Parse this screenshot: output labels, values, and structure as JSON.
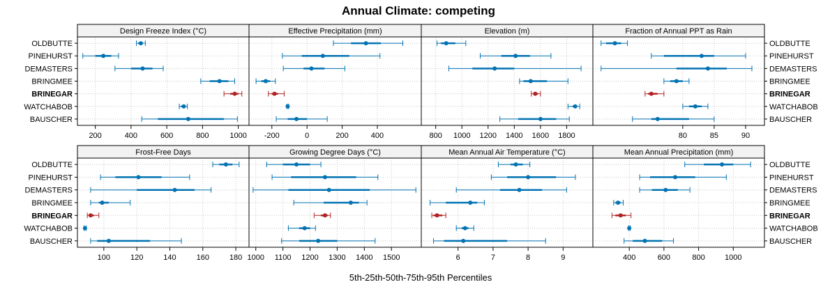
{
  "chart_data": {
    "type": "dot-whisker-panels",
    "title": "Annual Climate: competing",
    "xlabel": "5th-25th-50th-75th-95th Percentiles",
    "sites": [
      "OLDBUTTE",
      "PINEHURST",
      "DEMASTERS",
      "BRINGMEE",
      "BRINEGAR",
      "WATCHABOB",
      "BAUSCHER"
    ],
    "highlight_site": "BRINEGAR",
    "colors": {
      "normal": "#0072B2",
      "highlight": "#B22222",
      "strip": "#f2f2f2",
      "grid": "#c8c8c8"
    },
    "panels": [
      {
        "name": "Design Freeze Index (°C)",
        "xlim": [
          100,
          1060
        ],
        "ticks": [
          200,
          400,
          600,
          800,
          1000
        ],
        "data": [
          [
            430,
            440,
            455,
            465,
            480
          ],
          [
            130,
            200,
            245,
            290,
            330
          ],
          [
            310,
            400,
            465,
            520,
            580
          ],
          [
            790,
            840,
            895,
            945,
            980
          ],
          [
            920,
            955,
            980,
            1000,
            1020
          ],
          [
            670,
            680,
            695,
            705,
            715
          ],
          [
            460,
            550,
            720,
            920,
            995
          ]
        ]
      },
      {
        "name": "Effective Precipitation (mm)",
        "xlim": [
          -330,
          650
        ],
        "ticks": [
          -200,
          0,
          200,
          400
        ],
        "data": [
          [
            150,
            250,
            335,
            420,
            545
          ],
          [
            -140,
            -30,
            90,
            240,
            415
          ],
          [
            -135,
            -20,
            25,
            100,
            215
          ],
          [
            -290,
            -260,
            -235,
            -210,
            -180
          ],
          [
            -220,
            -200,
            -185,
            -165,
            -130
          ],
          [
            -115,
            -112,
            -110,
            -108,
            -105
          ],
          [
            -175,
            -110,
            -60,
            0,
            115
          ]
        ]
      },
      {
        "name": "Elevation (m)",
        "xlim": [
          690,
          2000
        ],
        "ticks": [
          800,
          1000,
          1200,
          1400,
          1600,
          1800
        ],
        "data": [
          [
            810,
            840,
            880,
            950,
            1030
          ],
          [
            1140,
            1300,
            1410,
            1520,
            1680
          ],
          [
            900,
            1080,
            1250,
            1400,
            1910
          ],
          [
            1440,
            1470,
            1525,
            1650,
            1810
          ],
          [
            1530,
            1545,
            1560,
            1580,
            1600
          ],
          [
            1810,
            1845,
            1865,
            1880,
            1900
          ],
          [
            1290,
            1430,
            1600,
            1720,
            1820
          ]
        ]
      },
      {
        "name": "Fraction of Annual PPT as Rain",
        "xlim": [
          65.7,
          93
        ],
        "ticks": [
          80,
          85,
          90
        ],
        "data": [
          [
            67,
            67.8,
            69.2,
            70.2,
            71.2
          ],
          [
            75,
            77,
            83,
            85,
            90
          ],
          [
            67,
            79,
            84,
            87,
            91
          ],
          [
            77,
            78,
            79,
            80,
            81
          ],
          [
            74,
            74.5,
            75,
            76,
            77
          ],
          [
            80,
            81,
            82,
            83,
            84
          ],
          [
            72,
            75,
            76,
            81,
            85
          ]
        ]
      },
      {
        "name": "Frost-Free Days",
        "xlim": [
          84,
          188
        ],
        "ticks": [
          100,
          120,
          140,
          160,
          180
        ],
        "data": [
          [
            166,
            170,
            174,
            178,
            182
          ],
          [
            98,
            107,
            121,
            135,
            152
          ],
          [
            92,
            120,
            143,
            155,
            165
          ],
          [
            92,
            97,
            99,
            103,
            116
          ],
          [
            90,
            91,
            92,
            94,
            97
          ],
          [
            88,
            88.3,
            88.6,
            89,
            89.3
          ],
          [
            92,
            96,
            103,
            128,
            147
          ]
        ]
      },
      {
        "name": "Growing Degree Days (°C)",
        "xlim": [
          975,
          1610
        ],
        "ticks": [
          1000,
          1100,
          1200,
          1300,
          1400,
          1500
        ],
        "data": [
          [
            1040,
            1100,
            1150,
            1200,
            1240
          ],
          [
            1060,
            1130,
            1255,
            1370,
            1450
          ],
          [
            990,
            1120,
            1270,
            1420,
            1590
          ],
          [
            1140,
            1250,
            1350,
            1380,
            1410
          ],
          [
            1215,
            1240,
            1255,
            1265,
            1275
          ],
          [
            1120,
            1160,
            1180,
            1200,
            1220
          ],
          [
            1095,
            1160,
            1230,
            1300,
            1440
          ]
        ]
      },
      {
        "name": "Mean Annual Air Temperature (°C)",
        "xlim": [
          4.95,
          9.85
        ],
        "ticks": [
          6,
          7,
          8,
          9
        ],
        "data": [
          [
            7.15,
            7.5,
            7.65,
            7.85,
            8.05
          ],
          [
            6.95,
            7.4,
            8.0,
            8.8,
            9.35
          ],
          [
            5.95,
            7.2,
            7.75,
            8.4,
            9.1
          ],
          [
            5.2,
            5.65,
            6.35,
            6.55,
            6.75
          ],
          [
            5.25,
            5.3,
            5.4,
            5.55,
            5.65
          ],
          [
            5.95,
            6.1,
            6.2,
            6.3,
            6.45
          ],
          [
            5.3,
            5.6,
            6.15,
            7.4,
            8.5
          ]
        ]
      },
      {
        "name": "Mean Annual Precipitation (mm)",
        "xlim": [
          190,
          1180
        ],
        "ticks": [
          400,
          600,
          800,
          1000
        ],
        "data": [
          [
            720,
            830,
            935,
            1000,
            1100
          ],
          [
            460,
            520,
            665,
            780,
            960
          ],
          [
            460,
            530,
            610,
            680,
            750
          ],
          [
            310,
            320,
            335,
            350,
            365
          ],
          [
            300,
            320,
            350,
            380,
            410
          ],
          [
            395,
            398,
            400,
            402,
            405
          ],
          [
            370,
            420,
            490,
            590,
            655
          ]
        ]
      }
    ]
  }
}
